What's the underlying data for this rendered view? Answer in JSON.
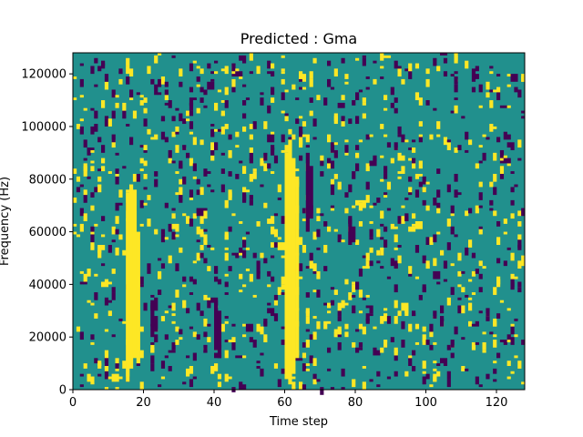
{
  "chart_data": {
    "type": "heatmap",
    "title": "Predicted : Gma",
    "xlabel": "Time step",
    "ylabel": "Frequency (Hz)",
    "xlim": [
      0,
      128
    ],
    "ylim": [
      0,
      128000
    ],
    "x_ticks": [
      0,
      20,
      40,
      60,
      80,
      100,
      120
    ],
    "y_ticks": [
      0,
      20000,
      40000,
      60000,
      80000,
      100000,
      120000
    ],
    "x_tick_labels": [
      "0",
      "20",
      "40",
      "60",
      "80",
      "100",
      "120"
    ],
    "y_tick_labels": [
      "0",
      "20000",
      "40000",
      "60000",
      "80000",
      "100000",
      "120000"
    ],
    "grid": false,
    "legend": "none",
    "colors": {
      "background": "#21908d",
      "high": "#fde725",
      "low": "#440154"
    },
    "grid_size": [
      128,
      128
    ],
    "high_runs": [
      {
        "t": 15,
        "f_start": 3000,
        "f_end": 75000
      },
      {
        "t": 16,
        "f_start": 8000,
        "f_end": 78000
      },
      {
        "t": 17,
        "f_start": 12000,
        "f_end": 76000
      },
      {
        "t": 18,
        "f_start": 10000,
        "f_end": 60000
      },
      {
        "t": 60,
        "f_start": 4000,
        "f_end": 90000
      },
      {
        "t": 61,
        "f_start": 2000,
        "f_end": 95000
      },
      {
        "t": 62,
        "f_start": 6000,
        "f_end": 88000
      },
      {
        "t": 63,
        "f_start": 12000,
        "f_end": 80000
      }
    ],
    "low_runs": [
      {
        "t": 22,
        "f_start": 20000,
        "f_end": 32000
      },
      {
        "t": 23,
        "f_start": 22000,
        "f_end": 28000
      },
      {
        "t": 40,
        "f_start": 15000,
        "f_end": 35000
      },
      {
        "t": 41,
        "f_start": 12000,
        "f_end": 30000
      },
      {
        "t": 66,
        "f_start": 60000,
        "f_end": 90000
      },
      {
        "t": 67,
        "f_start": 65000,
        "f_end": 85000
      },
      {
        "t": 78,
        "f_start": 55000,
        "f_end": 65000
      },
      {
        "t": 79,
        "f_start": 56000,
        "f_end": 62000
      }
    ]
  }
}
